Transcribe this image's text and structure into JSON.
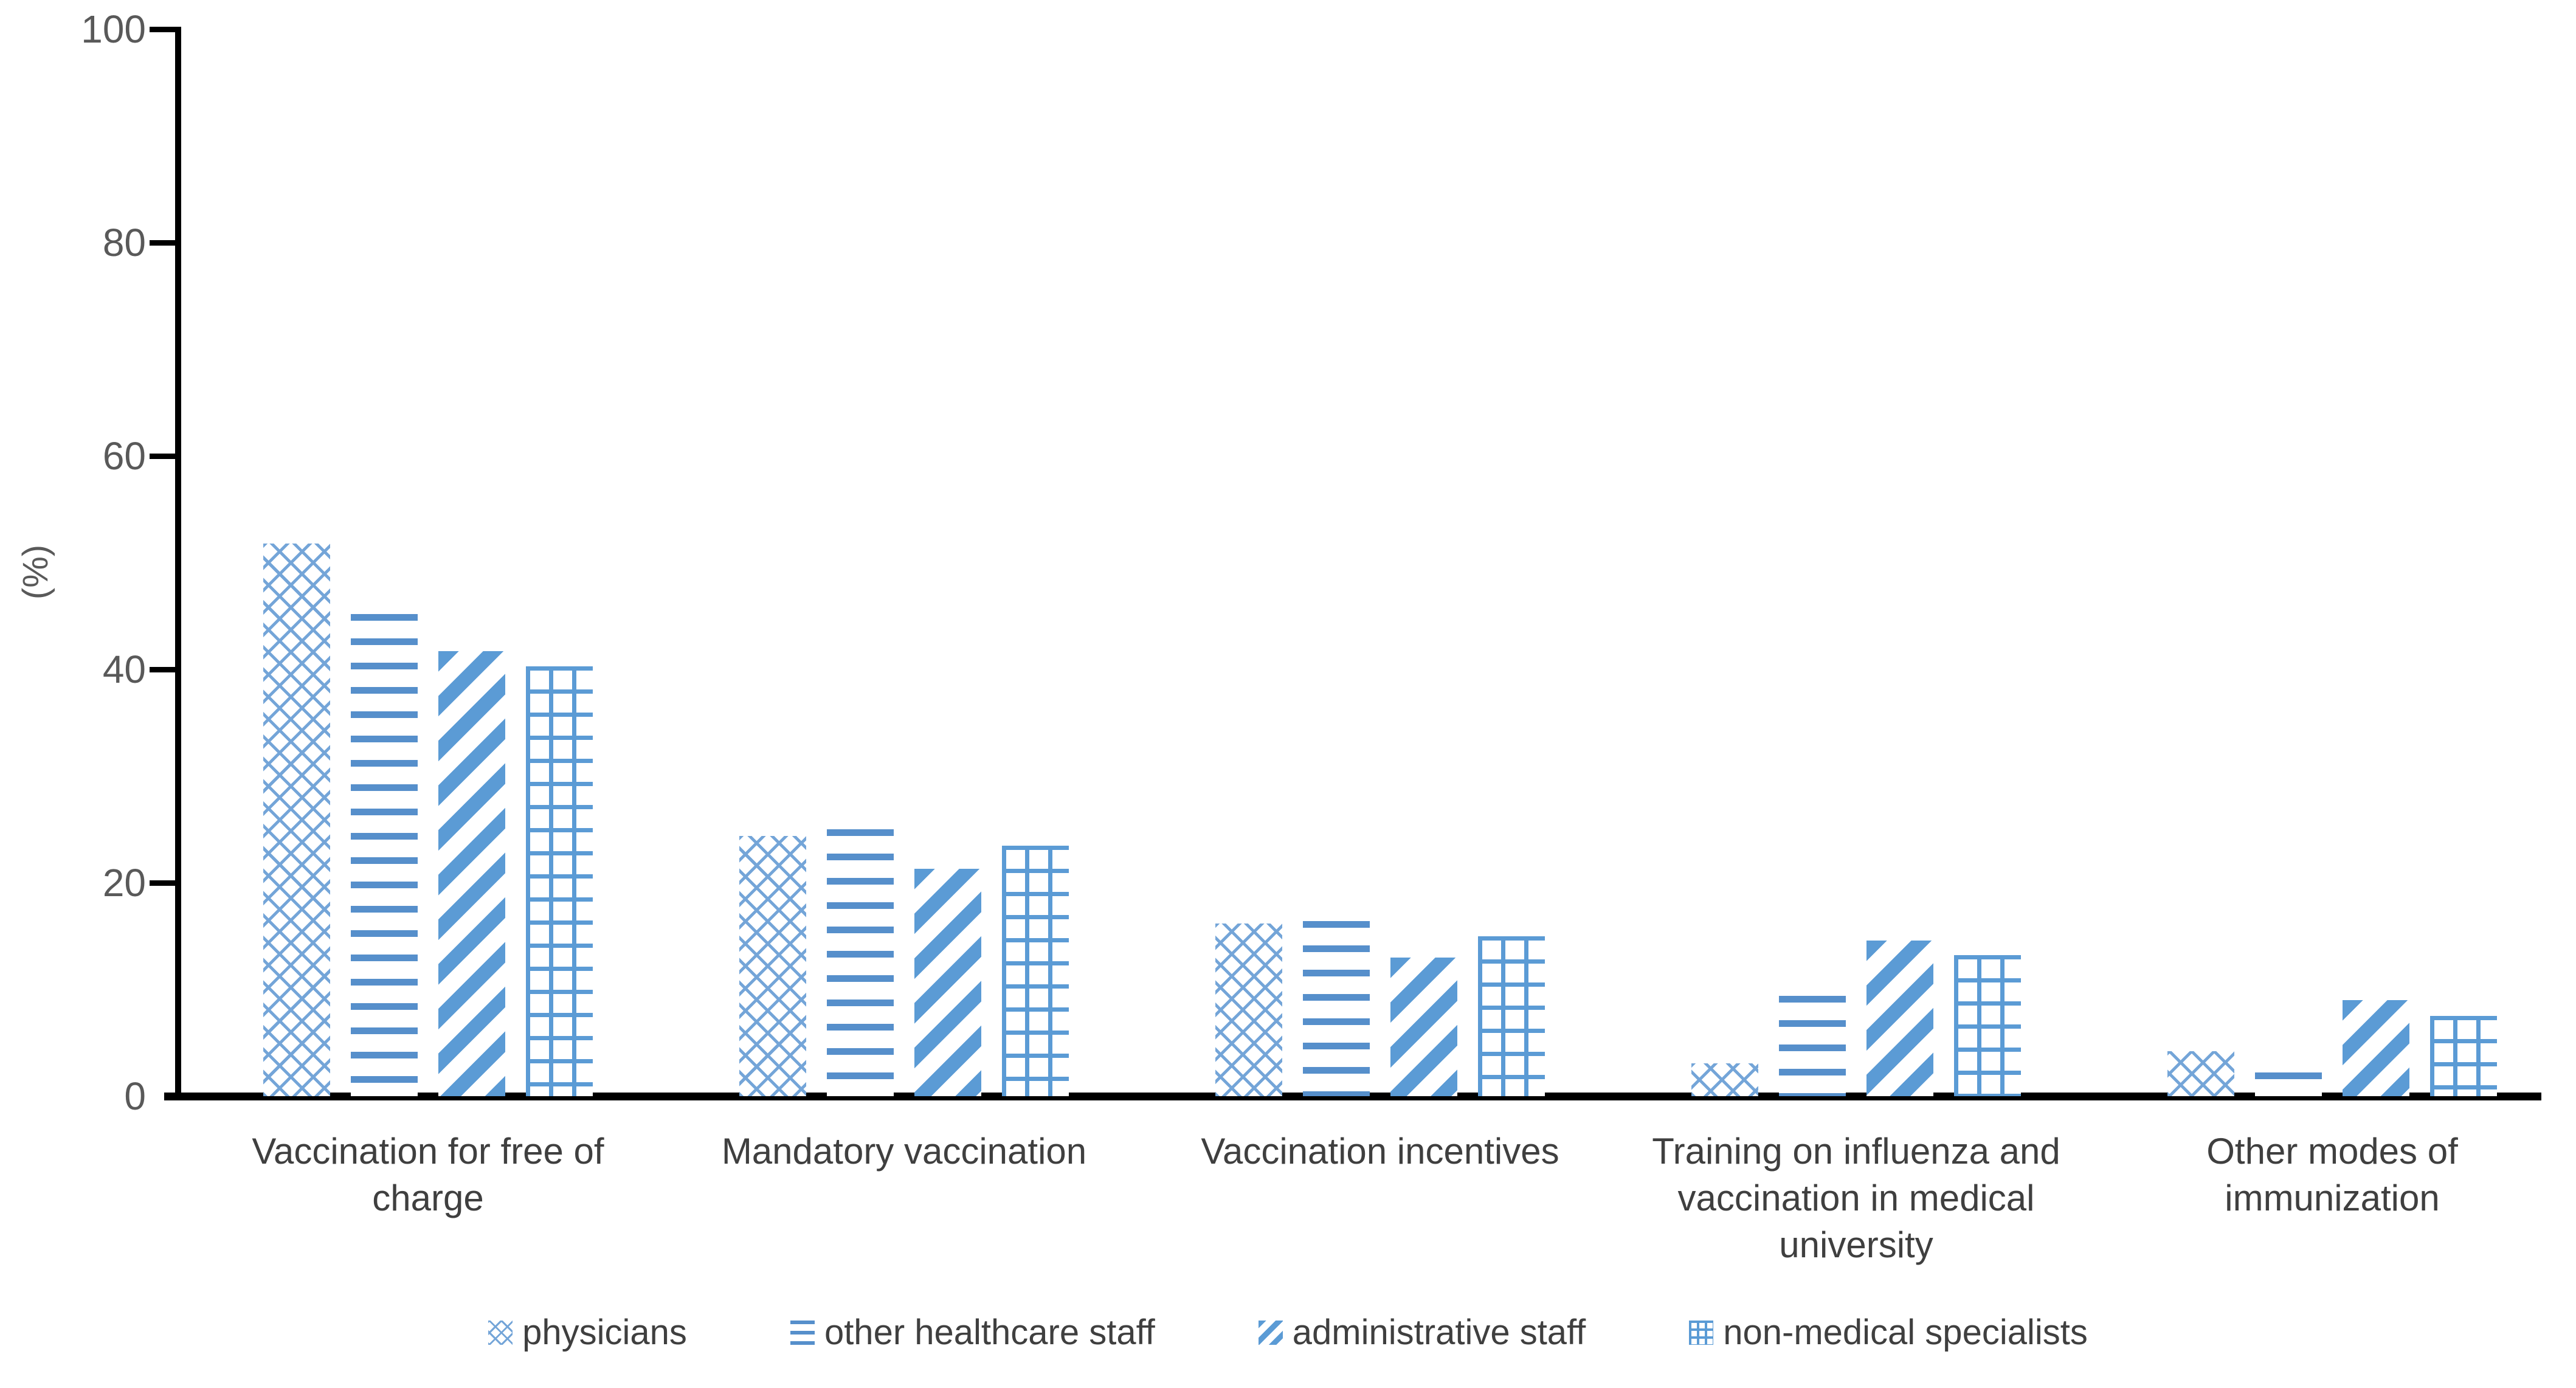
{
  "chart_data": {
    "type": "bar",
    "title": "",
    "xlabel": "",
    "ylabel": "(%)",
    "ylim": [
      0,
      100
    ],
    "yticks": [
      0,
      20,
      40,
      60,
      80,
      100
    ],
    "grid": false,
    "legend_position": "bottom",
    "categories": [
      "Vaccination for free of charge",
      "Mandatory vaccination",
      "Vaccination incentives",
      "Training on influenza and vaccination in medical university",
      "Other modes of immunization"
    ],
    "series": [
      {
        "name": "physicians",
        "pattern": "diamond-crosshatch",
        "values": [
          51.8,
          24.4,
          16.2,
          3.1,
          4.2
        ]
      },
      {
        "name": "other healthcare staff",
        "pattern": "horizontal-lines",
        "values": [
          45.2,
          25.0,
          16.4,
          9.4,
          2.2
        ]
      },
      {
        "name": "administrative staff",
        "pattern": "diagonal-stripes",
        "values": [
          41.7,
          21.3,
          13.0,
          14.6,
          9.0
        ]
      },
      {
        "name": "non-medical specialists",
        "pattern": "grid-crosshatch",
        "values": [
          40.3,
          23.5,
          15.0,
          13.2,
          7.5
        ]
      }
    ],
    "colors": {
      "bar_blue": "#5b9bd5",
      "axis_black": "#000000",
      "tick_text_gray": "#595959",
      "label_text_gray": "#3f3f3f",
      "background": "#ffffff"
    }
  }
}
